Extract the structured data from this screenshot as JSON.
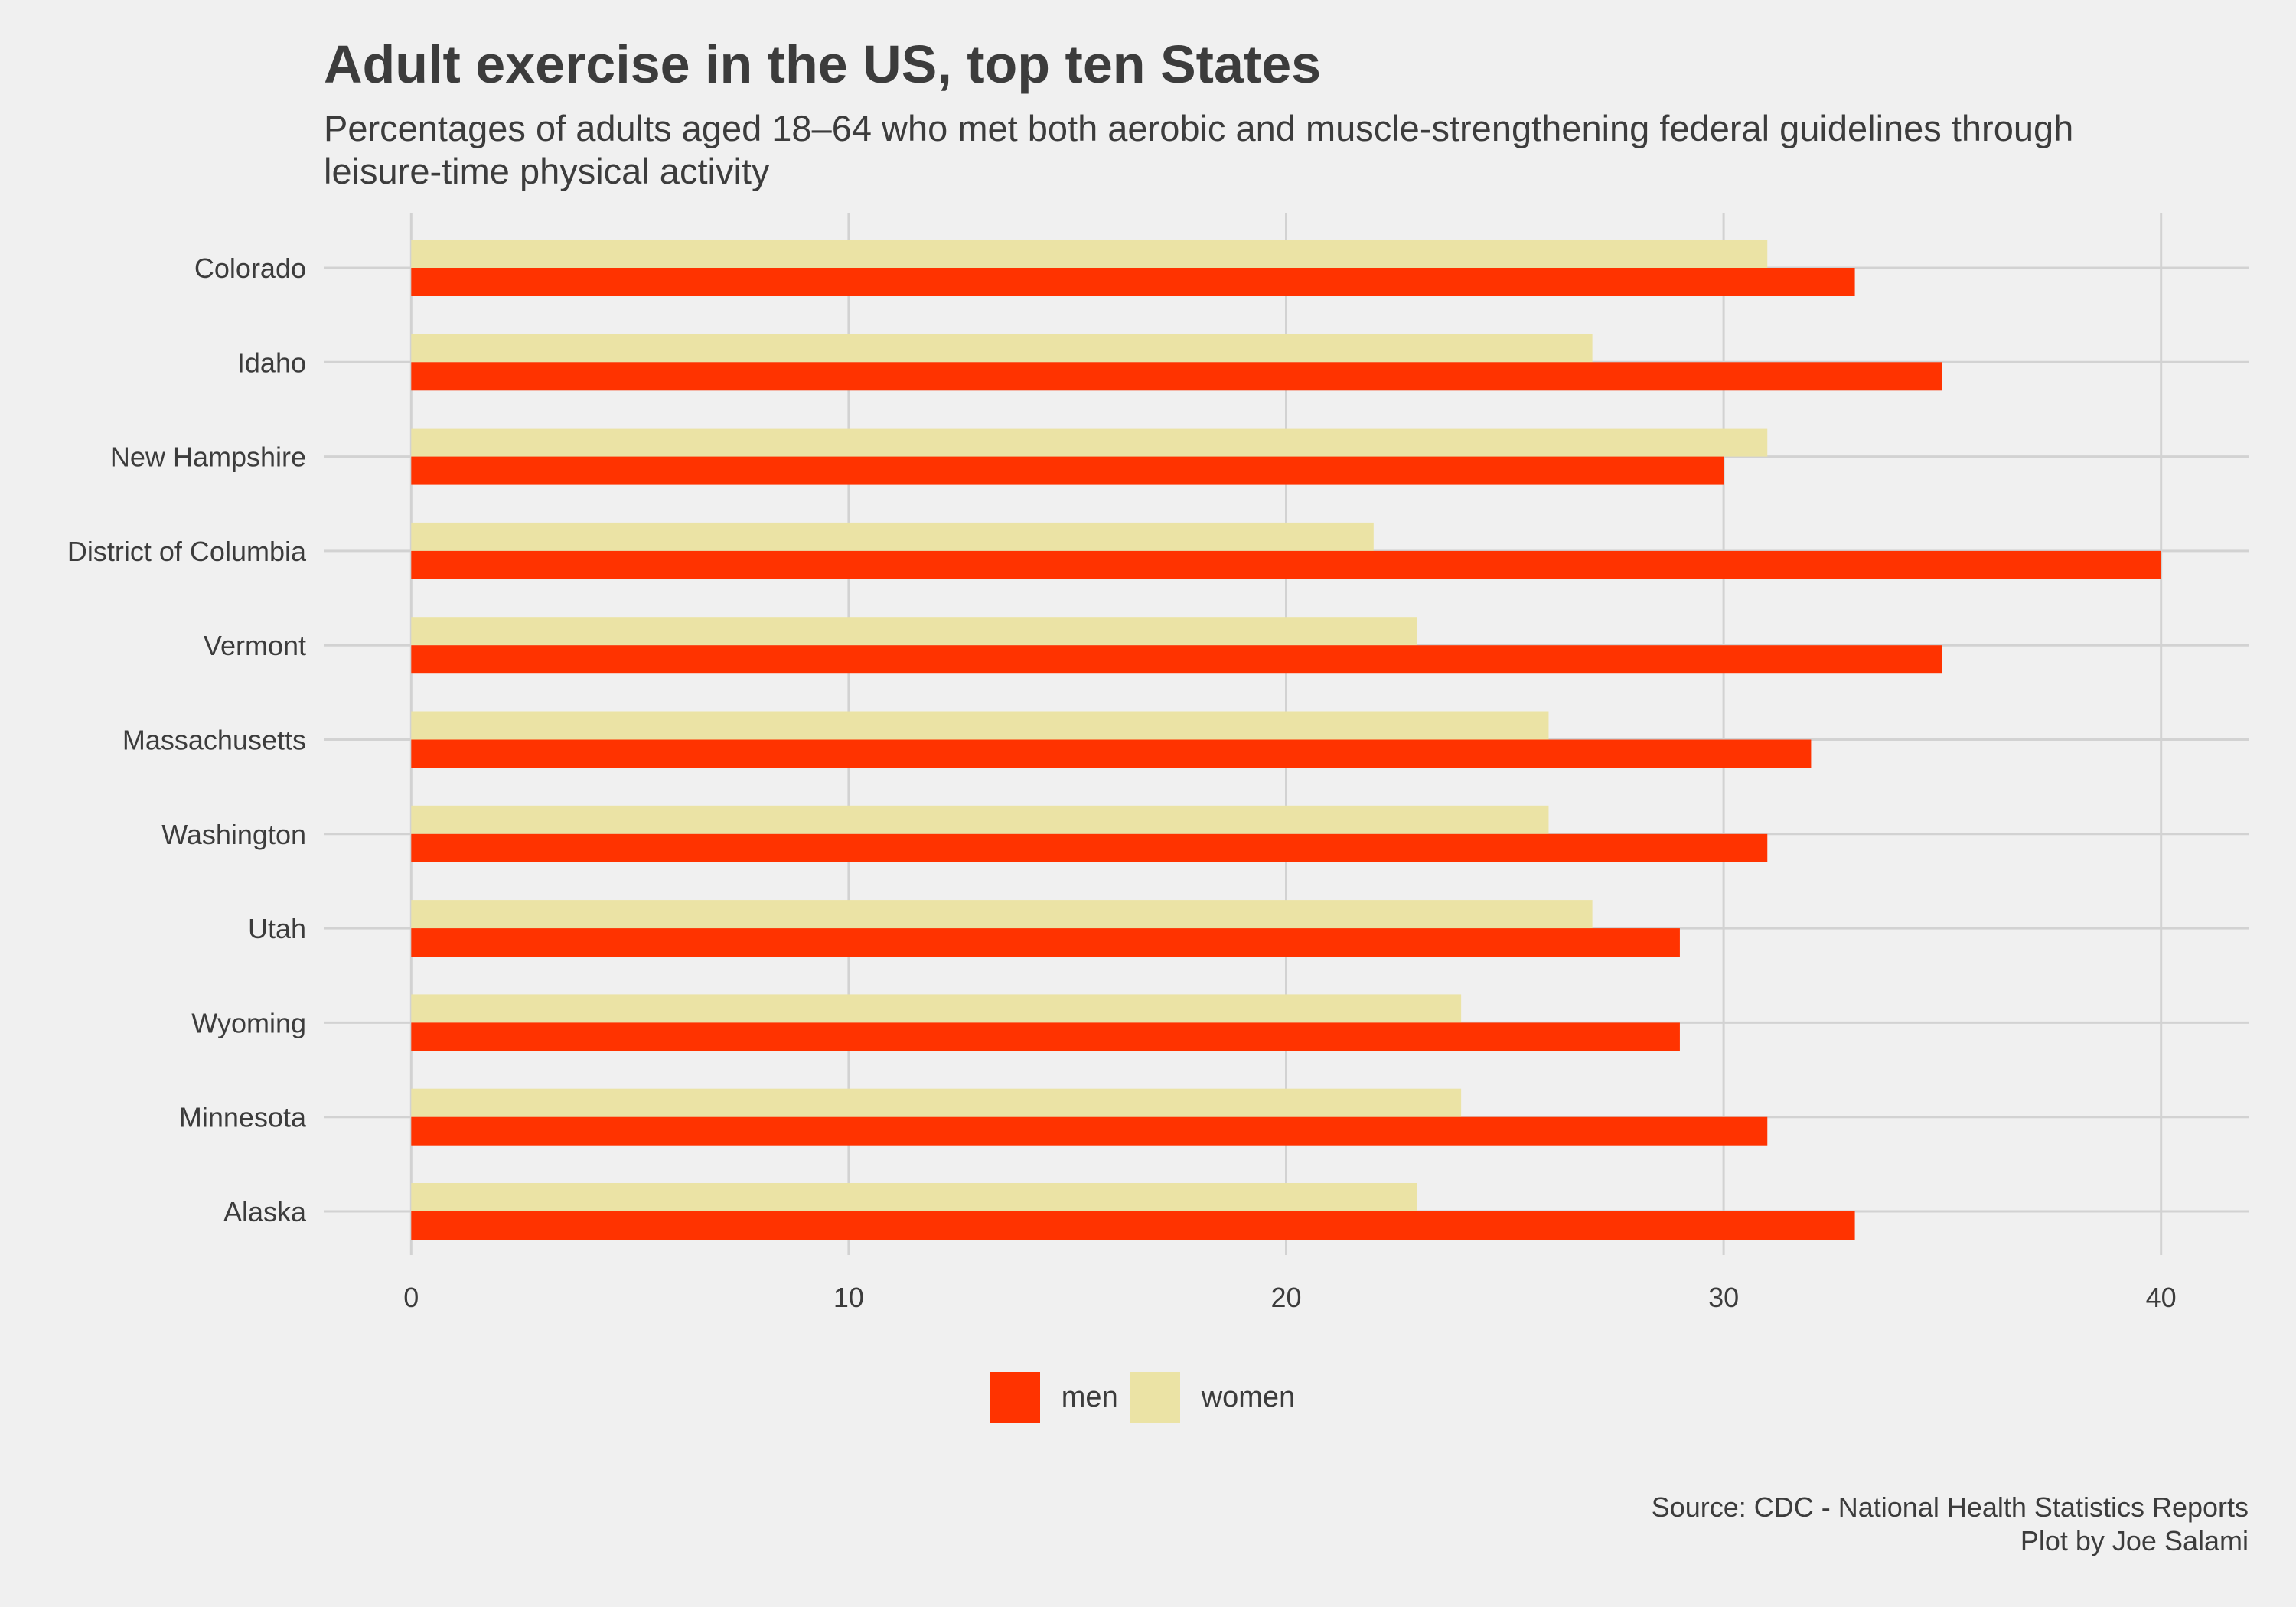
{
  "title": "Adult exercise in the US, top ten States",
  "subtitle": "Percentages of adults aged 18–64 who met both aerobic and muscle-strengthening federal guidelines through leisure-time physical activity",
  "caption": {
    "line1": "Source: CDC - National Health Statistics Reports",
    "line2": "Plot by Joe Salami"
  },
  "colors": {
    "men": "#ff3300",
    "women": "#ebe3a5",
    "grid": "#d2d2d2",
    "background": "#f0f0f0",
    "text": "#3c3c3c"
  },
  "chart_data": {
    "type": "bar",
    "orientation": "horizontal",
    "categories": [
      "Colorado",
      "Idaho",
      "New Hampshire",
      "District of Columbia",
      "Vermont",
      "Massachusetts",
      "Washington",
      "Utah",
      "Wyoming",
      "Minnesota",
      "Alaska"
    ],
    "series": [
      {
        "name": "men",
        "values": [
          33,
          35,
          30,
          40,
          35,
          32,
          31,
          29,
          29,
          31,
          33
        ]
      },
      {
        "name": "women",
        "values": [
          31,
          27,
          31,
          22,
          23,
          26,
          26,
          27,
          24,
          24,
          23
        ]
      }
    ],
    "xlim": [
      -2,
      42
    ],
    "xticks": [
      0,
      10,
      20,
      30,
      40
    ],
    "xlabel": "",
    "ylabel": "",
    "grid": true,
    "legend": "bottom"
  }
}
